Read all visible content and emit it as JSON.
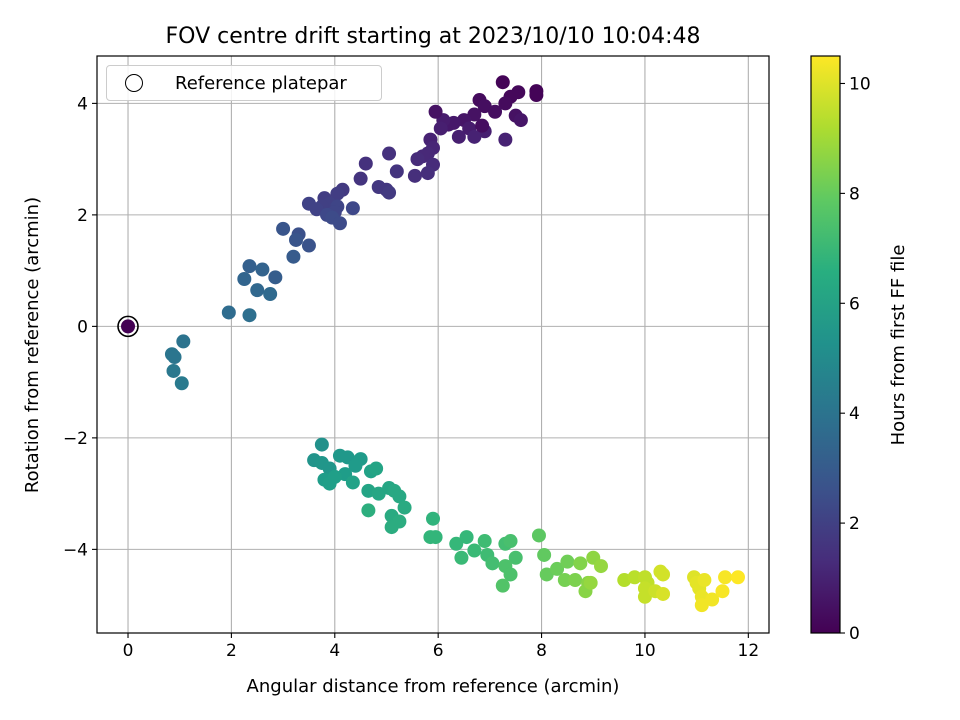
{
  "chart_data": {
    "type": "scatter",
    "title": "FOV centre drift starting at 2023/10/10 10:04:48",
    "xlabel": "Angular distance from reference (arcmin)",
    "ylabel": "Rotation from reference (arcmin)",
    "xlim": [
      -0.6,
      12.4
    ],
    "ylim": [
      -5.5,
      4.85
    ],
    "xticks": [
      0,
      2,
      4,
      6,
      8,
      10,
      12
    ],
    "yticks": [
      -4,
      -2,
      0,
      2,
      4
    ],
    "grid": true,
    "legend": {
      "position": "upper-left",
      "entries": [
        "Reference platepar"
      ]
    },
    "colorbar": {
      "label": "Hours from first FF file",
      "range": [
        0,
        10.5
      ],
      "ticks": [
        0,
        2,
        4,
        6,
        8,
        10
      ],
      "colormap": "viridis"
    },
    "reference_point": {
      "x": 0,
      "y": 0,
      "t": 0
    },
    "series": [
      {
        "name": "FOV centre drift",
        "points": [
          [
            7.25,
            4.38,
            0.1
          ],
          [
            7.9,
            4.22,
            0.1
          ],
          [
            7.9,
            4.15,
            0.1
          ],
          [
            7.55,
            4.2,
            0.2
          ],
          [
            7.4,
            4.12,
            0.2
          ],
          [
            7.3,
            4.0,
            0.3
          ],
          [
            6.8,
            4.06,
            0.3
          ],
          [
            6.9,
            3.95,
            0.4
          ],
          [
            7.1,
            3.85,
            0.4
          ],
          [
            6.7,
            3.8,
            0.5
          ],
          [
            7.5,
            3.78,
            0.5
          ],
          [
            7.6,
            3.7,
            0.6
          ],
          [
            6.5,
            3.7,
            0.6
          ],
          [
            6.3,
            3.65,
            0.7
          ],
          [
            6.2,
            3.62,
            0.7
          ],
          [
            6.1,
            3.7,
            0.8
          ],
          [
            6.6,
            3.55,
            0.8
          ],
          [
            6.9,
            3.5,
            0.9
          ],
          [
            6.4,
            3.4,
            0.9
          ],
          [
            6.7,
            3.4,
            1.0
          ],
          [
            7.3,
            3.35,
            1.0
          ],
          [
            5.95,
            3.85,
            0.5
          ],
          [
            6.85,
            3.6,
            0.4
          ],
          [
            6.05,
            3.55,
            0.9
          ],
          [
            5.85,
            3.35,
            1.0
          ],
          [
            5.9,
            3.2,
            1.1
          ],
          [
            5.8,
            3.1,
            1.2
          ],
          [
            5.7,
            3.05,
            1.2
          ],
          [
            5.6,
            3.0,
            1.3
          ],
          [
            5.9,
            2.9,
            1.3
          ],
          [
            5.8,
            2.75,
            1.4
          ],
          [
            5.55,
            2.7,
            1.4
          ],
          [
            5.05,
            3.1,
            1.5
          ],
          [
            4.6,
            2.92,
            1.5
          ],
          [
            5.2,
            2.78,
            1.6
          ],
          [
            4.5,
            2.65,
            1.6
          ],
          [
            4.85,
            2.5,
            1.7
          ],
          [
            5.0,
            2.45,
            1.7
          ],
          [
            5.05,
            2.4,
            1.8
          ],
          [
            4.15,
            2.45,
            1.8
          ],
          [
            4.05,
            2.38,
            1.9
          ],
          [
            3.8,
            2.3,
            1.9
          ],
          [
            3.9,
            2.2,
            2.0
          ],
          [
            3.75,
            2.15,
            2.0
          ],
          [
            3.5,
            2.2,
            2.1
          ],
          [
            3.65,
            2.1,
            2.1
          ],
          [
            4.05,
            2.15,
            2.2
          ],
          [
            4.0,
            2.05,
            2.2
          ],
          [
            4.35,
            2.12,
            2.3
          ],
          [
            3.85,
            2.0,
            2.3
          ],
          [
            3.95,
            1.95,
            2.4
          ],
          [
            4.1,
            1.85,
            2.4
          ],
          [
            3.3,
            1.65,
            2.6
          ],
          [
            3.5,
            1.45,
            2.7
          ],
          [
            3.25,
            1.55,
            2.8
          ],
          [
            3.0,
            1.75,
            2.8
          ],
          [
            3.2,
            1.25,
            3.0
          ],
          [
            2.85,
            0.88,
            3.1
          ],
          [
            2.35,
            1.08,
            3.2
          ],
          [
            2.6,
            1.02,
            3.3
          ],
          [
            2.25,
            0.85,
            3.4
          ],
          [
            2.5,
            0.65,
            3.5
          ],
          [
            2.75,
            0.58,
            3.6
          ],
          [
            1.95,
            0.25,
            3.7
          ],
          [
            2.35,
            0.2,
            3.8
          ],
          [
            1.07,
            -0.27,
            4.0
          ],
          [
            0.85,
            -0.5,
            4.1
          ],
          [
            0.9,
            -0.55,
            4.1
          ],
          [
            0.88,
            -0.8,
            4.2
          ],
          [
            1.04,
            -1.02,
            4.3
          ],
          [
            3.75,
            -2.12,
            5.3
          ],
          [
            3.6,
            -2.4,
            5.4
          ],
          [
            3.75,
            -2.45,
            5.5
          ],
          [
            3.9,
            -2.55,
            5.5
          ],
          [
            4.1,
            -2.32,
            5.6
          ],
          [
            4.25,
            -2.35,
            5.6
          ],
          [
            4.5,
            -2.38,
            5.7
          ],
          [
            4.4,
            -2.5,
            5.7
          ],
          [
            4.2,
            -2.65,
            5.8
          ],
          [
            3.8,
            -2.75,
            5.8
          ],
          [
            3.9,
            -2.82,
            5.9
          ],
          [
            4.0,
            -2.7,
            5.9
          ],
          [
            4.35,
            -2.8,
            6.0
          ],
          [
            4.7,
            -2.6,
            6.0
          ],
          [
            4.8,
            -2.55,
            6.1
          ],
          [
            4.65,
            -2.95,
            6.1
          ],
          [
            4.85,
            -3.0,
            6.2
          ],
          [
            5.05,
            -2.9,
            6.2
          ],
          [
            5.15,
            -2.95,
            6.3
          ],
          [
            5.25,
            -3.05,
            6.3
          ],
          [
            5.35,
            -3.25,
            6.4
          ],
          [
            5.1,
            -3.4,
            6.4
          ],
          [
            5.25,
            -3.5,
            6.5
          ],
          [
            5.1,
            -3.6,
            6.5
          ],
          [
            4.65,
            -3.3,
            6.6
          ],
          [
            5.9,
            -3.45,
            6.8
          ],
          [
            5.85,
            -3.78,
            6.9
          ],
          [
            5.95,
            -3.78,
            6.9
          ],
          [
            6.35,
            -3.9,
            7.0
          ],
          [
            6.55,
            -3.78,
            7.0
          ],
          [
            6.45,
            -4.15,
            7.1
          ],
          [
            6.7,
            -4.02,
            7.1
          ],
          [
            6.9,
            -3.85,
            7.2
          ],
          [
            6.95,
            -4.1,
            7.2
          ],
          [
            7.05,
            -4.25,
            7.3
          ],
          [
            7.3,
            -3.9,
            7.3
          ],
          [
            7.4,
            -3.85,
            7.4
          ],
          [
            7.5,
            -4.15,
            7.4
          ],
          [
            7.3,
            -4.3,
            7.5
          ],
          [
            7.4,
            -4.45,
            7.5
          ],
          [
            7.25,
            -4.65,
            7.6
          ],
          [
            7.95,
            -3.75,
            7.8
          ],
          [
            8.05,
            -4.1,
            7.9
          ],
          [
            8.1,
            -4.45,
            8.0
          ],
          [
            8.3,
            -4.35,
            8.1
          ],
          [
            8.5,
            -4.22,
            8.2
          ],
          [
            8.45,
            -4.55,
            8.3
          ],
          [
            8.65,
            -4.55,
            8.4
          ],
          [
            8.75,
            -4.25,
            8.5
          ],
          [
            8.9,
            -4.6,
            8.6
          ],
          [
            8.85,
            -4.75,
            8.6
          ],
          [
            9.0,
            -4.15,
            8.7
          ],
          [
            9.15,
            -4.3,
            8.8
          ],
          [
            8.95,
            -4.6,
            8.8
          ],
          [
            9.6,
            -4.55,
            9.3
          ],
          [
            9.8,
            -4.5,
            9.4
          ],
          [
            10.0,
            -4.5,
            9.5
          ],
          [
            10.05,
            -4.6,
            9.5
          ],
          [
            10.0,
            -4.7,
            9.6
          ],
          [
            10.0,
            -4.85,
            9.6
          ],
          [
            10.2,
            -4.75,
            9.7
          ],
          [
            10.3,
            -4.4,
            9.8
          ],
          [
            10.35,
            -4.45,
            9.8
          ],
          [
            10.35,
            -4.8,
            9.9
          ],
          [
            10.95,
            -4.5,
            10.0
          ],
          [
            11.0,
            -4.6,
            10.1
          ],
          [
            11.05,
            -4.7,
            10.1
          ],
          [
            11.15,
            -4.55,
            10.2
          ],
          [
            11.1,
            -4.85,
            10.2
          ],
          [
            11.1,
            -5.0,
            10.3
          ],
          [
            11.3,
            -4.9,
            10.3
          ],
          [
            11.5,
            -4.75,
            10.4
          ],
          [
            11.55,
            -4.5,
            10.4
          ],
          [
            11.8,
            -4.5,
            10.5
          ]
        ]
      }
    ]
  }
}
